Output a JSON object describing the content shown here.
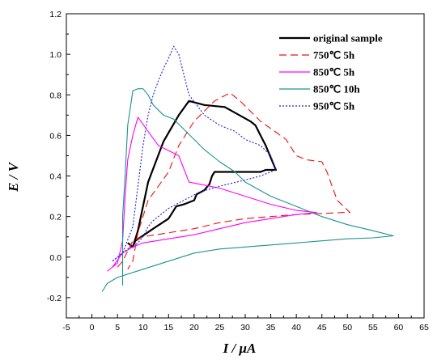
{
  "chart_data": {
    "type": "line",
    "xlabel": "I / μA",
    "ylabel": "E / V",
    "xlim": [
      -5,
      65
    ],
    "ylim": [
      -0.3,
      1.2
    ],
    "xticks": [
      -5,
      0,
      5,
      10,
      15,
      20,
      25,
      30,
      35,
      40,
      45,
      50,
      55,
      60,
      65
    ],
    "yticks": [
      -0.2,
      0.0,
      0.2,
      0.4,
      0.6,
      0.8,
      1.0,
      1.2
    ],
    "xtick_labels": [
      "-5",
      "0",
      "5",
      "10",
      "15",
      "20",
      "25",
      "30",
      "35",
      "40",
      "45",
      "50",
      "55",
      "60",
      "65"
    ],
    "ytick_labels": [
      "-0.2",
      "0.0",
      "0.2",
      "0.4",
      "0.6",
      "0.8",
      "1.0",
      "1.2"
    ],
    "grid": false,
    "legend_position": "top-right",
    "series": [
      {
        "name": "original sample",
        "color": "#000000",
        "dash": "solid",
        "width": 2.2,
        "points": [
          [
            7,
            0.07
          ],
          [
            8,
            0.05
          ],
          [
            8.5,
            0.08
          ],
          [
            12,
            0.14
          ],
          [
            15,
            0.19
          ],
          [
            16.5,
            0.25
          ],
          [
            18,
            0.26
          ],
          [
            19,
            0.27
          ],
          [
            20,
            0.28
          ],
          [
            20.5,
            0.31
          ],
          [
            22,
            0.33
          ],
          [
            23,
            0.36
          ],
          [
            23.5,
            0.4
          ],
          [
            24,
            0.42
          ],
          [
            28,
            0.42
          ],
          [
            30,
            0.42
          ],
          [
            33,
            0.42
          ],
          [
            34,
            0.43
          ],
          [
            36,
            0.43
          ],
          [
            34,
            0.55
          ],
          [
            33,
            0.6
          ],
          [
            32,
            0.65
          ],
          [
            31,
            0.67
          ],
          [
            26,
            0.74
          ],
          [
            22,
            0.75
          ],
          [
            19,
            0.77
          ],
          [
            17,
            0.7
          ],
          [
            14,
            0.57
          ],
          [
            11,
            0.37
          ],
          [
            10,
            0.25
          ],
          [
            9,
            0.13
          ],
          [
            8,
            0.05
          ]
        ]
      },
      {
        "name": "750℃ 5h",
        "color": "#ee1111",
        "dash": "9,5",
        "width": 1.1,
        "points": [
          [
            5,
            -0.05
          ],
          [
            6,
            -0.02
          ],
          [
            7,
            0.03
          ],
          [
            8,
            0.08
          ],
          [
            10,
            0.1
          ],
          [
            15,
            0.12
          ],
          [
            20,
            0.14
          ],
          [
            25,
            0.17
          ],
          [
            30,
            0.19
          ],
          [
            35,
            0.2
          ],
          [
            40,
            0.21
          ],
          [
            45,
            0.215
          ],
          [
            49,
            0.22
          ],
          [
            50.5,
            0.22
          ],
          [
            48,
            0.28
          ],
          [
            47,
            0.35
          ],
          [
            46,
            0.42
          ],
          [
            45,
            0.47
          ],
          [
            42,
            0.48
          ],
          [
            40,
            0.5
          ],
          [
            38,
            0.58
          ],
          [
            33,
            0.67
          ],
          [
            29,
            0.77
          ],
          [
            27,
            0.81
          ],
          [
            24,
            0.77
          ],
          [
            20,
            0.67
          ],
          [
            17,
            0.55
          ],
          [
            15,
            0.42
          ],
          [
            13,
            0.35
          ],
          [
            11,
            0.28
          ],
          [
            9,
            0.12
          ],
          [
            8,
            -0.02
          ],
          [
            7,
            -0.06
          ]
        ]
      },
      {
        "name": "850℃ 5h",
        "color": "#ff00ff",
        "dash": "solid",
        "width": 1.1,
        "points": [
          [
            3,
            -0.07
          ],
          [
            4,
            -0.05
          ],
          [
            6,
            0.02
          ],
          [
            8,
            0.05
          ],
          [
            10,
            0.07
          ],
          [
            15,
            0.09
          ],
          [
            20,
            0.11
          ],
          [
            25,
            0.14
          ],
          [
            30,
            0.17
          ],
          [
            35,
            0.19
          ],
          [
            40,
            0.21
          ],
          [
            44,
            0.22
          ],
          [
            40,
            0.23
          ],
          [
            35,
            0.26
          ],
          [
            30,
            0.3
          ],
          [
            25,
            0.34
          ],
          [
            19,
            0.37
          ],
          [
            17,
            0.5
          ],
          [
            13,
            0.55
          ],
          [
            11,
            0.62
          ],
          [
            9,
            0.69
          ],
          [
            8,
            0.6
          ],
          [
            7,
            0.48
          ],
          [
            6.5,
            0.3
          ],
          [
            6,
            0.08
          ],
          [
            5,
            -0.03
          ],
          [
            3,
            -0.07
          ]
        ]
      },
      {
        "name": "850℃ 10h",
        "color": "#1a9393",
        "dash": "solid",
        "width": 1.1,
        "points": [
          [
            2,
            -0.17
          ],
          [
            3,
            -0.13
          ],
          [
            5,
            -0.1
          ],
          [
            10,
            -0.06
          ],
          [
            15,
            -0.02
          ],
          [
            20,
            0.02
          ],
          [
            25,
            0.04
          ],
          [
            30,
            0.05
          ],
          [
            35,
            0.06
          ],
          [
            40,
            0.07
          ],
          [
            45,
            0.08
          ],
          [
            50,
            0.09
          ],
          [
            55,
            0.095
          ],
          [
            59,
            0.105
          ],
          [
            55,
            0.13
          ],
          [
            50,
            0.16
          ],
          [
            45,
            0.2
          ],
          [
            40,
            0.25
          ],
          [
            35,
            0.3
          ],
          [
            30,
            0.37
          ],
          [
            28,
            0.42
          ],
          [
            25,
            0.47
          ],
          [
            22,
            0.53
          ],
          [
            20,
            0.58
          ],
          [
            18,
            0.63
          ],
          [
            16,
            0.68
          ],
          [
            14,
            0.7
          ],
          [
            12,
            0.75
          ],
          [
            11,
            0.8
          ],
          [
            10,
            0.83
          ],
          [
            9,
            0.83
          ],
          [
            8,
            0.82
          ],
          [
            7,
            0.65
          ],
          [
            6.5,
            0.4
          ],
          [
            6,
            0.2
          ],
          [
            6,
            0.02
          ],
          [
            6,
            -0.08
          ],
          [
            6,
            -0.14
          ]
        ]
      },
      {
        "name": "950℃ 5h",
        "color": "#1f1fd6",
        "dash": "2,2",
        "width": 1.1,
        "points": [
          [
            4,
            -0.02
          ],
          [
            5,
            0.0
          ],
          [
            7,
            0.04
          ],
          [
            9,
            0.07
          ],
          [
            10,
            0.1
          ],
          [
            11,
            0.15
          ],
          [
            12,
            0.18
          ],
          [
            15,
            0.24
          ],
          [
            18,
            0.28
          ],
          [
            21,
            0.32
          ],
          [
            25,
            0.35
          ],
          [
            30,
            0.38
          ],
          [
            33,
            0.4
          ],
          [
            36,
            0.43
          ],
          [
            35,
            0.5
          ],
          [
            33,
            0.55
          ],
          [
            30,
            0.58
          ],
          [
            28,
            0.62
          ],
          [
            25,
            0.65
          ],
          [
            22,
            0.7
          ],
          [
            19,
            0.8
          ],
          [
            17,
            1.0
          ],
          [
            16,
            1.04
          ],
          [
            15,
            0.98
          ],
          [
            14,
            0.93
          ],
          [
            13,
            0.87
          ],
          [
            12,
            0.8
          ],
          [
            11,
            0.7
          ],
          [
            10,
            0.55
          ],
          [
            9,
            0.35
          ],
          [
            8,
            0.15
          ],
          [
            6,
            0.02
          ],
          [
            4,
            -0.02
          ]
        ]
      }
    ]
  }
}
